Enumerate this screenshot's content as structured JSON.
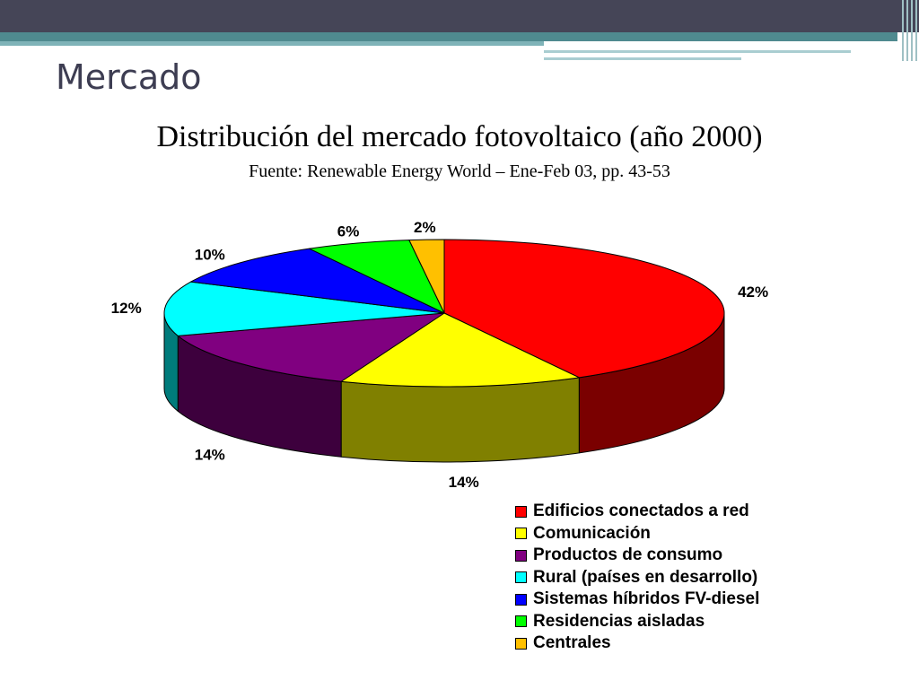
{
  "slide": {
    "title": "Mercado"
  },
  "chart_data": {
    "type": "pie",
    "title": "Distribución del mercado fotovoltaico (año 2000)",
    "subtitle": "Fuente: Renewable Energy World – Ene-Feb 03, pp. 43-53",
    "value_suffix": "%",
    "slices": [
      {
        "name": "Edificios conectados a red",
        "value": 42,
        "label": "42%",
        "color": "#ff0000",
        "side_color": "#7a0000"
      },
      {
        "name": "Comunicación",
        "value": 14,
        "label": "14%",
        "color": "#ffff00",
        "side_color": "#808000"
      },
      {
        "name": "Productos de consumo",
        "value": 14,
        "label": "14%",
        "color": "#800080",
        "side_color": "#3d003d"
      },
      {
        "name": "Rural (países en desarrollo)",
        "value": 12,
        "label": "12%",
        "color": "#00ffff",
        "side_color": "#007b7b"
      },
      {
        "name": "Sistemas híbridos FV-diesel",
        "value": 10,
        "label": "10%",
        "color": "#0000ff",
        "side_color": "#000080"
      },
      {
        "name": "Residencias aisladas",
        "value": 6,
        "label": "6%",
        "color": "#00ff00",
        "side_color": "#008000"
      },
      {
        "name": "Centrales",
        "value": 2,
        "label": "2%",
        "color": "#ffc000",
        "side_color": "#806000"
      }
    ],
    "legend_position": "bottom-right"
  }
}
